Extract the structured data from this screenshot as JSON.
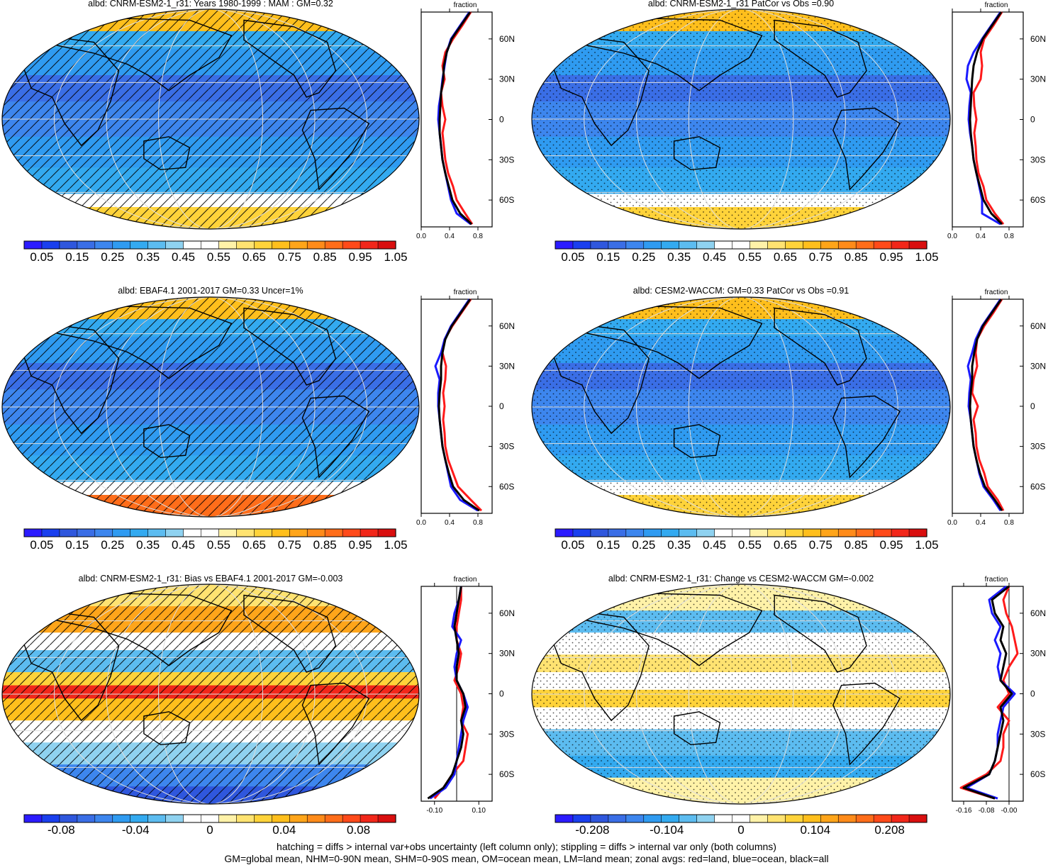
{
  "colors": {
    "colorbar_abs": [
      "#2b1bff",
      "#1a3fee",
      "#2f57dd",
      "#3a6ee6",
      "#3d86ee",
      "#2f9bf1",
      "#33aaf0",
      "#5cbcf0",
      "#8fd2f0",
      "#ffffff",
      "#ffffff",
      "#fff2a8",
      "#ffe371",
      "#ffd33a",
      "#ffbf1c",
      "#ffa51a",
      "#ff8b1a",
      "#ff6d1a",
      "#ff4a1a",
      "#f2271a",
      "#d90f0f"
    ],
    "colorbar_diff": [
      "#2b1bff",
      "#1a3fee",
      "#2f57dd",
      "#3a6ee6",
      "#3d86ee",
      "#2f9bf1",
      "#33aaf0",
      "#5cbcf0",
      "#8fd2f0",
      "#ffffff",
      "#ffffff",
      "#fff2a8",
      "#ffe371",
      "#ffd33a",
      "#ffbf1c",
      "#ffa51a",
      "#ff8b1a",
      "#ff6d1a",
      "#ff4a1a",
      "#f2271a",
      "#d90f0f"
    ],
    "land_line": "#ff1a1a",
    "ocean_line": "#1a1aff",
    "all_line": "#000000"
  },
  "panels": [
    {
      "title": "albd: CNRM-ESM2-1_r31: Years 1980-1999 : MAM : GM=0.32",
      "kind": "abs",
      "overlay": "hatch",
      "colorbar_ticks": [
        "0.05",
        "0.15",
        "0.25",
        "0.35",
        "0.45",
        "0.55",
        "0.65",
        "0.75",
        "0.85",
        "0.95",
        "1.05"
      ],
      "zonal": {
        "title": "fraction",
        "xticks": [
          "0.0",
          "0.4",
          "0.8"
        ],
        "xlim": [
          0,
          1.0
        ],
        "lat_labels": [
          "60N",
          "30N",
          "0",
          "30S",
          "60S"
        ],
        "lats": [
          -78,
          -70,
          -60,
          -50,
          -40,
          -30,
          -20,
          -10,
          0,
          10,
          20,
          30,
          40,
          50,
          60,
          70,
          80
        ],
        "land": [
          0.72,
          0.62,
          0.5,
          0.45,
          0.38,
          0.34,
          0.32,
          0.3,
          0.34,
          0.3,
          0.28,
          0.33,
          0.3,
          0.34,
          0.45,
          0.58,
          0.7
        ],
        "ocean": [
          0.7,
          0.5,
          0.42,
          0.38,
          0.34,
          0.3,
          0.28,
          0.26,
          0.24,
          0.25,
          0.28,
          0.3,
          0.33,
          0.36,
          0.42,
          0.55,
          0.68
        ],
        "all": [
          0.71,
          0.55,
          0.44,
          0.39,
          0.34,
          0.3,
          0.28,
          0.26,
          0.26,
          0.27,
          0.28,
          0.31,
          0.32,
          0.36,
          0.43,
          0.56,
          0.69
        ]
      }
    },
    {
      "title": "albd: CNRM-ESM2-1_r31 PatCor vs Obs =0.90",
      "kind": "abs",
      "overlay": "stipple",
      "colorbar_ticks": [
        "0.05",
        "0.15",
        "0.25",
        "0.35",
        "0.45",
        "0.55",
        "0.65",
        "0.75",
        "0.85",
        "0.95",
        "1.05"
      ],
      "zonal": {
        "title": "fraction",
        "xticks": [
          "0.0",
          "0.4",
          "0.8"
        ],
        "xlim": [
          0,
          1.0
        ],
        "lat_labels": [
          "60N",
          "30N",
          "0",
          "30S",
          "60S"
        ],
        "lats": [
          -78,
          -70,
          -60,
          -50,
          -40,
          -30,
          -20,
          -10,
          0,
          10,
          20,
          30,
          40,
          50,
          60,
          70,
          80
        ],
        "land": [
          0.72,
          0.6,
          0.48,
          0.44,
          0.37,
          0.34,
          0.33,
          0.31,
          0.34,
          0.31,
          0.3,
          0.4,
          0.42,
          0.4,
          0.45,
          0.58,
          0.7
        ],
        "ocean": [
          0.68,
          0.42,
          0.42,
          0.38,
          0.34,
          0.3,
          0.28,
          0.25,
          0.23,
          0.24,
          0.26,
          0.2,
          0.22,
          0.3,
          0.42,
          0.55,
          0.68
        ],
        "all": [
          0.7,
          0.55,
          0.44,
          0.39,
          0.34,
          0.3,
          0.28,
          0.26,
          0.25,
          0.26,
          0.27,
          0.28,
          0.3,
          0.35,
          0.43,
          0.56,
          0.69
        ]
      }
    },
    {
      "title": "albd: EBAF4.1 2001-2017 GM=0.33 Uncer=1%",
      "kind": "abs",
      "overlay": "hatch",
      "colorbar_ticks": [
        "0.05",
        "0.15",
        "0.25",
        "0.35",
        "0.45",
        "0.55",
        "0.65",
        "0.75",
        "0.85",
        "0.95",
        "1.05"
      ],
      "zonal": {
        "title": "fraction",
        "xticks": [
          "0.0",
          "0.4",
          "0.8"
        ],
        "xlim": [
          0,
          1.0
        ],
        "lat_labels": [
          "60N",
          "30N",
          "0",
          "30S",
          "60S"
        ],
        "lats": [
          -78,
          -70,
          -60,
          -50,
          -40,
          -30,
          -20,
          -10,
          0,
          10,
          20,
          30,
          40,
          50,
          60,
          70,
          80
        ],
        "land": [
          0.85,
          0.7,
          0.52,
          0.45,
          0.38,
          0.34,
          0.33,
          0.31,
          0.33,
          0.31,
          0.34,
          0.35,
          0.3,
          0.33,
          0.44,
          0.57,
          0.7
        ],
        "ocean": [
          0.8,
          0.55,
          0.42,
          0.38,
          0.34,
          0.3,
          0.28,
          0.26,
          0.24,
          0.24,
          0.26,
          0.2,
          0.28,
          0.33,
          0.42,
          0.55,
          0.68
        ],
        "all": [
          0.82,
          0.6,
          0.45,
          0.39,
          0.34,
          0.3,
          0.28,
          0.26,
          0.25,
          0.26,
          0.28,
          0.28,
          0.3,
          0.34,
          0.43,
          0.56,
          0.69
        ]
      }
    },
    {
      "title": "albd: CESM2-WACCM: GM=0.33 PatCor vs Obs =0.91",
      "kind": "abs",
      "overlay": "stipple",
      "colorbar_ticks": [
        "0.05",
        "0.15",
        "0.25",
        "0.35",
        "0.45",
        "0.55",
        "0.65",
        "0.75",
        "0.85",
        "0.95",
        "1.05"
      ],
      "zonal": {
        "title": "fraction",
        "xticks": [
          "0.0",
          "0.4",
          "0.8"
        ],
        "xlim": [
          0,
          1.0
        ],
        "lat_labels": [
          "60N",
          "30N",
          "0",
          "30S",
          "60S"
        ],
        "lats": [
          -78,
          -70,
          -60,
          -50,
          -40,
          -30,
          -20,
          -10,
          0,
          10,
          20,
          30,
          40,
          50,
          60,
          70,
          80
        ],
        "land": [
          0.72,
          0.64,
          0.5,
          0.45,
          0.38,
          0.34,
          0.33,
          0.3,
          0.36,
          0.28,
          0.3,
          0.35,
          0.33,
          0.35,
          0.45,
          0.58,
          0.7
        ],
        "ocean": [
          0.68,
          0.58,
          0.44,
          0.38,
          0.34,
          0.3,
          0.28,
          0.26,
          0.23,
          0.24,
          0.26,
          0.22,
          0.28,
          0.33,
          0.42,
          0.55,
          0.68
        ],
        "all": [
          0.7,
          0.6,
          0.46,
          0.39,
          0.34,
          0.3,
          0.28,
          0.26,
          0.25,
          0.26,
          0.28,
          0.28,
          0.31,
          0.35,
          0.43,
          0.56,
          0.69
        ]
      }
    },
    {
      "title": "albd: CNRM-ESM2-1_r31: Bias vs EBAF4.1 2001-2017 GM=-0.003",
      "kind": "diff",
      "overlay": "hatch",
      "colorbar_ticks": [
        "-0.08",
        "-0.04",
        "0",
        "0.04",
        "0.08"
      ],
      "zonal": {
        "title": "fraction",
        "xticks": [
          "-0.10",
          "0.10"
        ],
        "xlim": [
          -0.16,
          0.16
        ],
        "lat_labels": [
          "60N",
          "30N",
          "0",
          "30S",
          "60S"
        ],
        "lats": [
          -78,
          -70,
          -60,
          -50,
          -40,
          -30,
          -20,
          -10,
          0,
          10,
          20,
          30,
          40,
          50,
          60,
          70,
          80
        ],
        "land": [
          -0.1,
          -0.06,
          -0.02,
          0.03,
          0.04,
          0.05,
          0.02,
          0.03,
          0.02,
          -0.01,
          0.01,
          0.02,
          0.0,
          0.0,
          0.01,
          0.02,
          0.02
        ],
        "ocean": [
          -0.12,
          -0.05,
          -0.01,
          0.0,
          0.01,
          0.02,
          0.03,
          0.05,
          0.03,
          0.0,
          -0.01,
          0.0,
          0.02,
          -0.02,
          -0.01,
          0.01,
          0.02
        ],
        "all": [
          -0.13,
          -0.06,
          -0.02,
          0.0,
          0.02,
          0.03,
          0.02,
          0.04,
          0.03,
          0.0,
          0.0,
          0.01,
          0.0,
          -0.01,
          0.0,
          0.01,
          0.02
        ]
      }
    },
    {
      "title": "albd: CNRM-ESM2-1_r31: Change vs CESM2-WACCM GM=-0.002",
      "kind": "diff",
      "overlay": "stipple",
      "colorbar_ticks": [
        "-0.208",
        "-0.104",
        "0",
        "0.104",
        "0.208"
      ],
      "zonal": {
        "title": "fraction",
        "xticks": [
          "-0.16",
          "-0.08",
          "-0.00"
        ],
        "xlim": [
          -0.2,
          0.05
        ],
        "lat_labels": [
          "60N",
          "30N",
          "0",
          "30S",
          "60S"
        ],
        "lats": [
          -78,
          -70,
          -60,
          -50,
          -40,
          -30,
          -20,
          -10,
          0,
          10,
          20,
          30,
          40,
          50,
          60,
          70,
          80
        ],
        "land": [
          -0.05,
          -0.17,
          -0.08,
          -0.03,
          -0.02,
          -0.02,
          0.0,
          -0.04,
          0.0,
          -0.02,
          0.0,
          0.03,
          0.02,
          0.01,
          -0.01,
          -0.02,
          0.0
        ],
        "ocean": [
          -0.04,
          -0.15,
          -0.07,
          -0.05,
          -0.04,
          -0.04,
          -0.03,
          -0.02,
          0.02,
          -0.03,
          -0.04,
          -0.03,
          -0.05,
          -0.03,
          -0.06,
          -0.07,
          -0.01
        ],
        "all": [
          -0.05,
          -0.16,
          -0.07,
          -0.05,
          -0.04,
          -0.03,
          -0.02,
          -0.03,
          0.01,
          -0.03,
          -0.02,
          -0.01,
          -0.03,
          -0.02,
          -0.05,
          -0.06,
          0.0
        ]
      }
    }
  ],
  "footer": {
    "line1": "hatching = diffs > internal var+obs uncertainty (left column only); stippling = diffs > internal var only (both columns)",
    "line2": "GM=global mean, NHM=0-90N mean, SHM=0-90S mean, OM=ocean mean, LM=land mean; zonal avgs: red=land, blue=ocean, black=all"
  }
}
